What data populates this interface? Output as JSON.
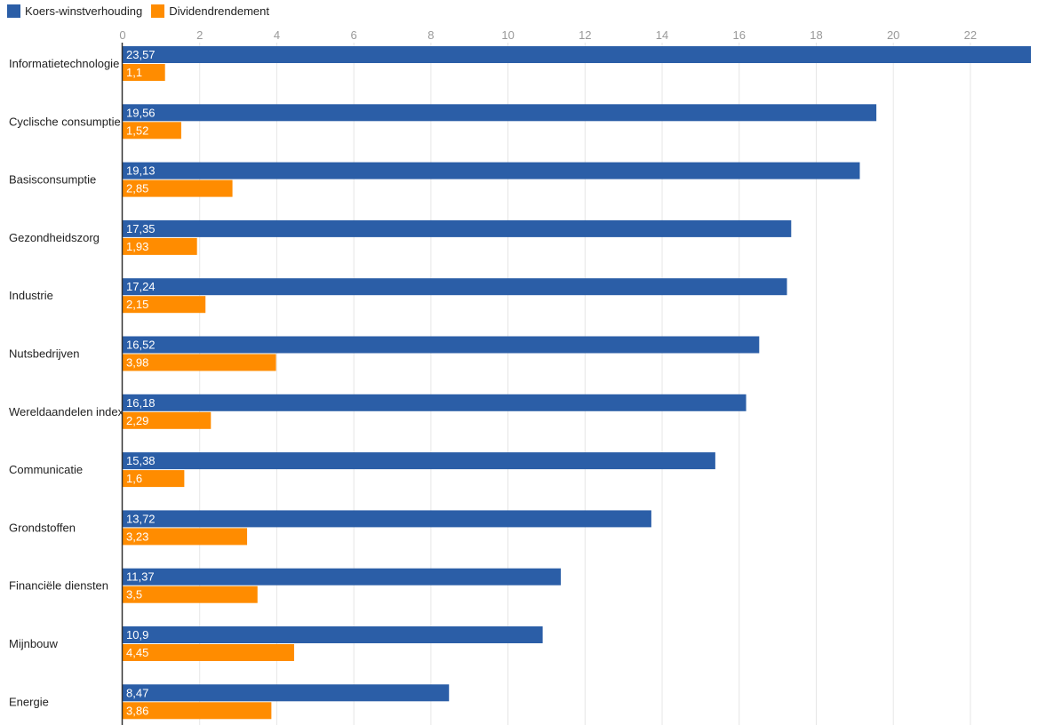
{
  "chart_data": {
    "type": "bar",
    "orientation": "horizontal",
    "title": "",
    "xlabel": "",
    "ylabel": "",
    "xlim": [
      0,
      23.57
    ],
    "xticks": [
      "0",
      "2",
      "4",
      "6",
      "8",
      "10",
      "12",
      "14",
      "16",
      "18",
      "20",
      "22"
    ],
    "grid": true,
    "legend_position": "top-left",
    "categories": [
      "Informatietechnologie",
      "Cyclische consumptie",
      "Basisconsumptie",
      "Gezondheidszorg",
      "Industrie",
      "Nutsbedrijven",
      "Wereldaandelen index",
      "Communicatie",
      "Grondstoffen",
      "Financiële diensten",
      "Mijnbouw",
      "Energie"
    ],
    "series": [
      {
        "name": "Koers-winstverhouding",
        "color": "#2b5ea7",
        "values": [
          23.57,
          19.56,
          19.13,
          17.35,
          17.24,
          16.52,
          16.18,
          15.38,
          13.72,
          11.37,
          10.9,
          8.47
        ],
        "labels": [
          "23,57",
          "19,56",
          "19,13",
          "17,35",
          "17,24",
          "16,52",
          "16,18",
          "15,38",
          "13,72",
          "11,37",
          "10,9",
          "8,47"
        ]
      },
      {
        "name": "Dividendrendement",
        "color": "#ff8c00",
        "values": [
          1.1,
          1.52,
          2.85,
          1.93,
          2.15,
          3.98,
          2.29,
          1.6,
          3.23,
          3.5,
          4.45,
          3.86
        ],
        "labels": [
          "1,1",
          "1,52",
          "2,85",
          "1,93",
          "2,15",
          "3,98",
          "2,29",
          "1,6",
          "3,23",
          "3,5",
          "4,45",
          "3,86"
        ]
      }
    ]
  }
}
